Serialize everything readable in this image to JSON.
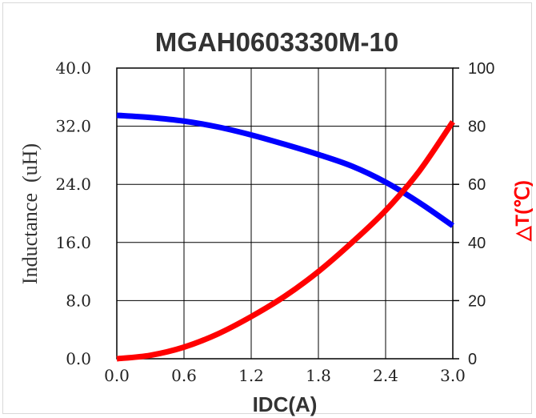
{
  "chart_data": {
    "type": "line",
    "title": "MGAH0603330M-10",
    "xlabel": "IDC(A)",
    "ylabel": "Inductance  (uH)",
    "y2label": "△T(℃)",
    "xlim": [
      0.0,
      3.0
    ],
    "ylim": [
      0.0,
      40.0
    ],
    "y2lim": [
      0,
      100
    ],
    "x_ticks": [
      "0.0",
      "0.6",
      "1.2",
      "1.8",
      "2.4",
      "3.0"
    ],
    "y_ticks": [
      "0.0",
      "8.0",
      "16.0",
      "24.0",
      "32.0",
      "40.0"
    ],
    "y2_ticks": [
      "0",
      "20",
      "40",
      "60",
      "80",
      "100"
    ],
    "grid": true,
    "series": [
      {
        "axis": "left",
        "color": "#0000ff",
        "x": [
          0.0,
          0.3,
          0.6,
          0.9,
          1.2,
          1.5,
          1.8,
          2.1,
          2.4,
          2.7,
          3.0
        ],
        "y": [
          33.5,
          33.2,
          32.7,
          31.9,
          30.8,
          29.5,
          28.1,
          26.5,
          24.3,
          21.5,
          18.3
        ]
      },
      {
        "axis": "right",
        "color": "#ff0000",
        "x": [
          0.0,
          0.3,
          0.6,
          0.9,
          1.2,
          1.5,
          1.8,
          2.1,
          2.4,
          2.7,
          3.0
        ],
        "y": [
          0,
          1.2,
          4.0,
          8.5,
          14.5,
          21.5,
          30.0,
          40.0,
          51.0,
          64.5,
          81.5
        ]
      }
    ]
  }
}
